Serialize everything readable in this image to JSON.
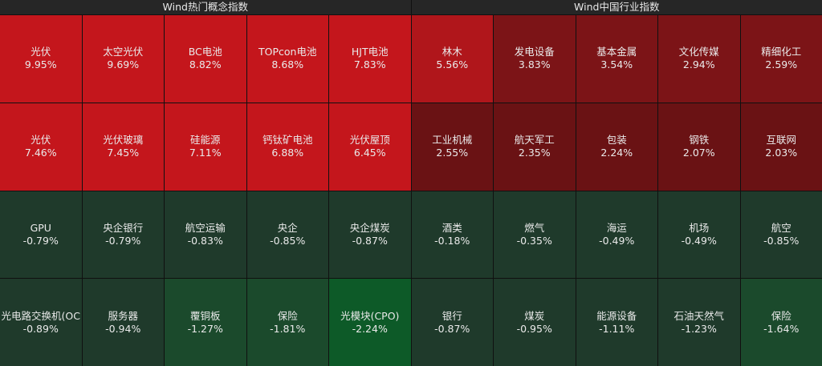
{
  "colors": {
    "deep_red": "#c4161c",
    "mid_red": "#b0161b",
    "dark_red": "#7c1417",
    "darker_red": "#6a1214",
    "neutral_green": "#1f3a2b",
    "mid_green": "#1e4a2e",
    "bright_green": "#0d5a28"
  },
  "left": {
    "title": "Wind热门概念指数",
    "cells": [
      {
        "name": "光伏",
        "pct": "9.95%",
        "color": "#c4161c"
      },
      {
        "name": "太空光伏",
        "pct": "9.69%",
        "color": "#c4161c"
      },
      {
        "name": "BC电池",
        "pct": "8.82%",
        "color": "#c4161c"
      },
      {
        "name": "TOPcon电池",
        "pct": "8.68%",
        "color": "#c4161c"
      },
      {
        "name": "HJT电池",
        "pct": "7.83%",
        "color": "#c4161c"
      },
      {
        "name": "光伏",
        "pct": "7.46%",
        "color": "#c4161c"
      },
      {
        "name": "光伏玻璃",
        "pct": "7.45%",
        "color": "#c4161c"
      },
      {
        "name": "硅能源",
        "pct": "7.11%",
        "color": "#c4161c"
      },
      {
        "name": "钙钛矿电池",
        "pct": "6.88%",
        "color": "#c4161c"
      },
      {
        "name": "光伏屋顶",
        "pct": "6.45%",
        "color": "#c4161c"
      },
      {
        "name": "GPU",
        "pct": "-0.79%",
        "color": "#1f3a2b"
      },
      {
        "name": "央企银行",
        "pct": "-0.79%",
        "color": "#1f3a2b"
      },
      {
        "name": "航空运输",
        "pct": "-0.83%",
        "color": "#1f3a2b"
      },
      {
        "name": "央企",
        "pct": "-0.85%",
        "color": "#1f3a2b"
      },
      {
        "name": "央企煤炭",
        "pct": "-0.87%",
        "color": "#1f3a2b"
      },
      {
        "name": "光电路交换机(OC",
        "pct": "-0.89%",
        "color": "#1f3a2b"
      },
      {
        "name": "服务器",
        "pct": "-0.94%",
        "color": "#1f3a2b"
      },
      {
        "name": "覆铜板",
        "pct": "-1.27%",
        "color": "#1b4a2c"
      },
      {
        "name": "保险",
        "pct": "-1.81%",
        "color": "#1b4a2c"
      },
      {
        "name": "光模块(CPO)",
        "pct": "-2.24%",
        "color": "#0d5a28"
      }
    ]
  },
  "right": {
    "title": "Wind中国行业指数",
    "cells": [
      {
        "name": "林木",
        "pct": "5.56%",
        "color": "#b0161b"
      },
      {
        "name": "发电设备",
        "pct": "3.83%",
        "color": "#7c1417"
      },
      {
        "name": "基本金属",
        "pct": "3.54%",
        "color": "#7c1417"
      },
      {
        "name": "文化传媒",
        "pct": "2.94%",
        "color": "#7c1417"
      },
      {
        "name": "精细化工",
        "pct": "2.59%",
        "color": "#7c1417"
      },
      {
        "name": "工业机械",
        "pct": "2.55%",
        "color": "#6a1214"
      },
      {
        "name": "航天军工",
        "pct": "2.35%",
        "color": "#6a1214"
      },
      {
        "name": "包装",
        "pct": "2.24%",
        "color": "#6a1214"
      },
      {
        "name": "钢铁",
        "pct": "2.07%",
        "color": "#6a1214"
      },
      {
        "name": "互联网",
        "pct": "2.03%",
        "color": "#6a1214"
      },
      {
        "name": "酒类",
        "pct": "-0.18%",
        "color": "#1f3a2b"
      },
      {
        "name": "燃气",
        "pct": "-0.35%",
        "color": "#1f3a2b"
      },
      {
        "name": "海运",
        "pct": "-0.49%",
        "color": "#1f3a2b"
      },
      {
        "name": "机场",
        "pct": "-0.49%",
        "color": "#1f3a2b"
      },
      {
        "name": "航空",
        "pct": "-0.85%",
        "color": "#1f3a2b"
      },
      {
        "name": "银行",
        "pct": "-0.87%",
        "color": "#1f3a2b"
      },
      {
        "name": "煤炭",
        "pct": "-0.95%",
        "color": "#1f3a2b"
      },
      {
        "name": "能源设备",
        "pct": "-1.11%",
        "color": "#1f3a2b"
      },
      {
        "name": "石油天然气",
        "pct": "-1.23%",
        "color": "#1f3a2b"
      },
      {
        "name": "保险",
        "pct": "-1.64%",
        "color": "#1b4a2c"
      }
    ]
  }
}
